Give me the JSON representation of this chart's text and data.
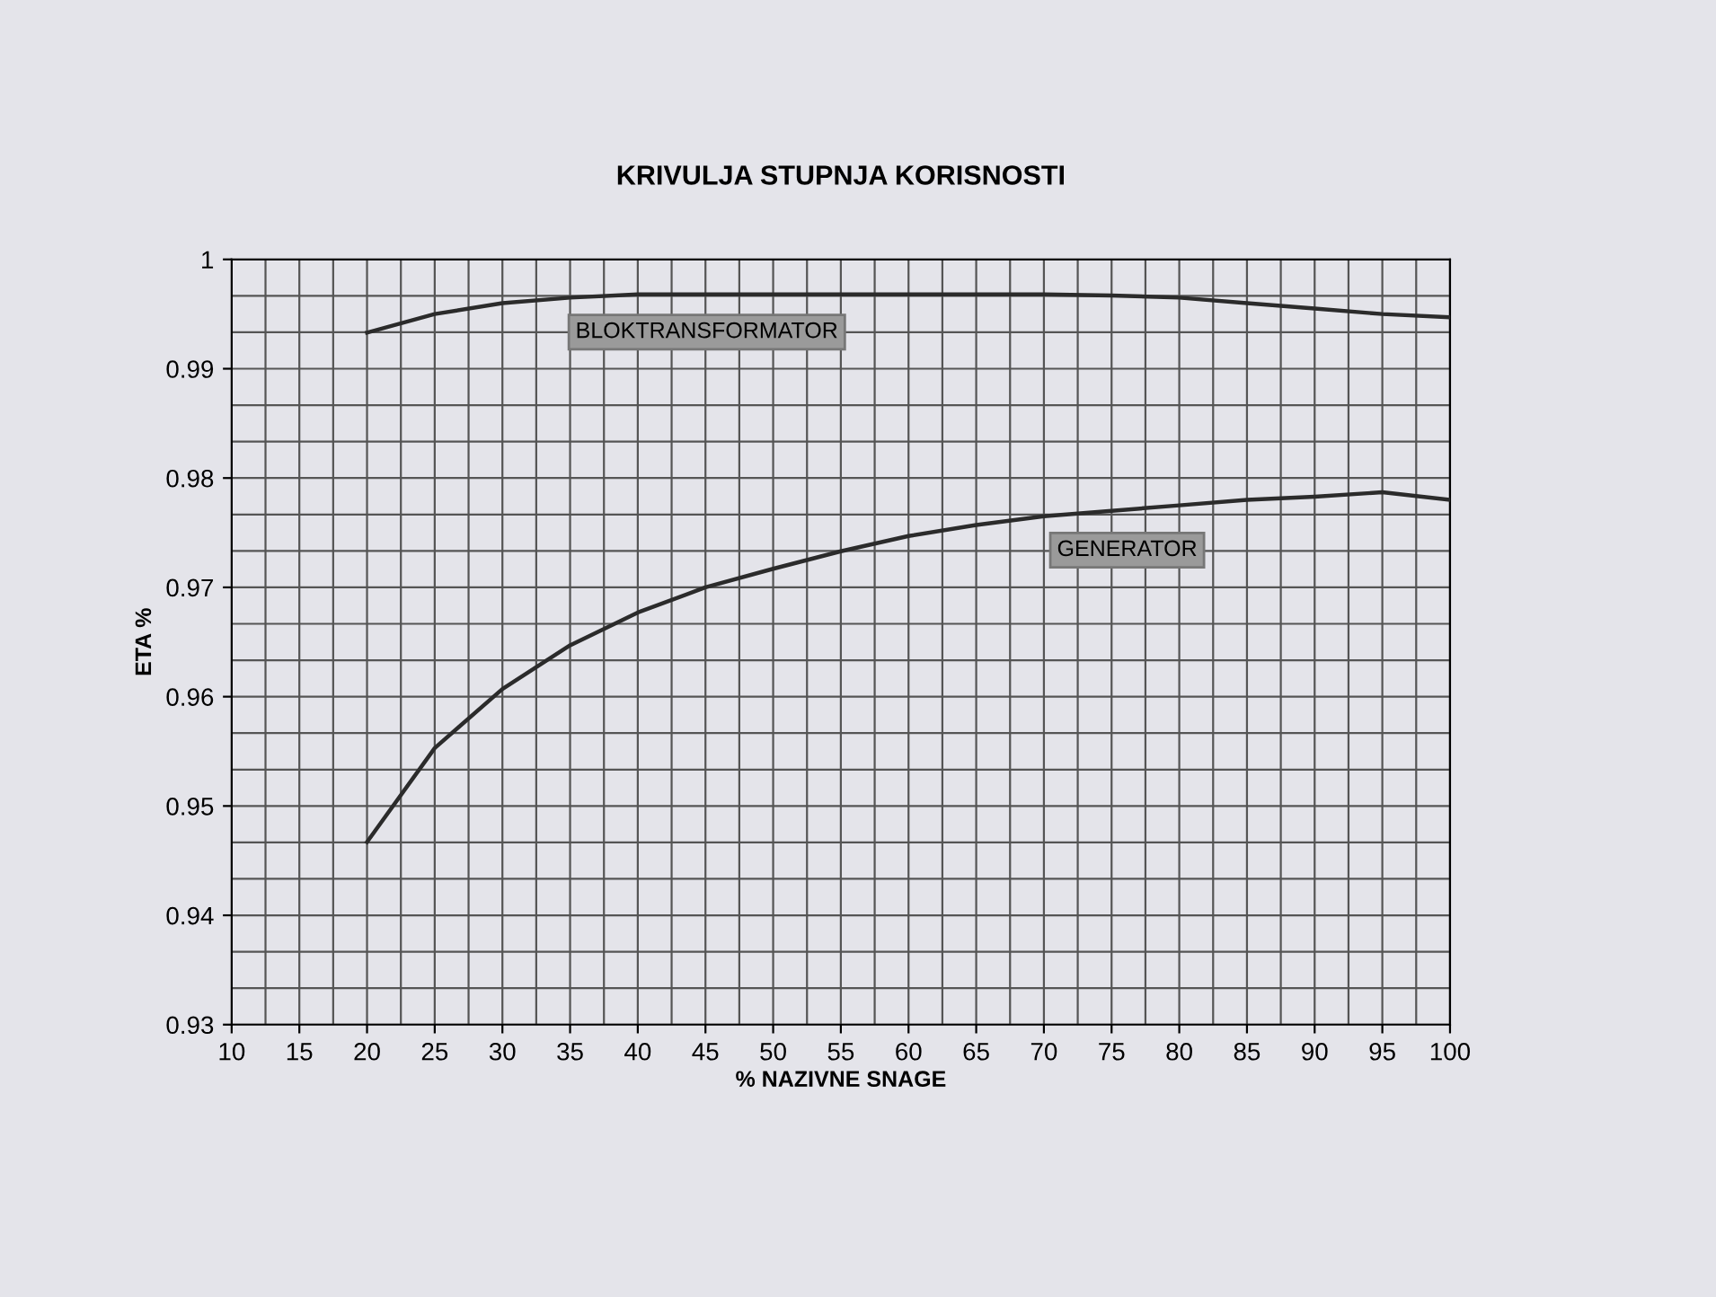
{
  "chart_data": {
    "type": "line",
    "title": "KRIVULJA STUPNJA KORISNOSTI",
    "xlabel": "% NAZIVNE SNAGE",
    "ylabel": "ETA %",
    "x": [
      20,
      25,
      30,
      35,
      40,
      45,
      50,
      55,
      60,
      65,
      70,
      75,
      80,
      85,
      90,
      95,
      100
    ],
    "series": [
      {
        "color": "#2b2b2b",
        "values": [
          0.9933,
          0.995,
          0.996,
          0.9965,
          0.9968,
          0.9968,
          0.9968,
          0.9968,
          0.9968,
          0.9968,
          0.9968,
          0.9967,
          0.9965,
          0.996,
          0.9955,
          0.995,
          0.9947
        ]
      },
      {
        "color": "#2b2b2b",
        "values": [
          0.9467,
          0.9553,
          0.9607,
          0.9647,
          0.9677,
          0.97,
          0.9717,
          0.9733,
          0.9747,
          0.9757,
          0.9765,
          0.977,
          0.9775,
          0.978,
          0.9783,
          0.9787,
          0.978
        ]
      }
    ],
    "annotations": [
      "BLOKTRANSFORMATOR",
      "GENERATOR"
    ],
    "xlim": [
      10,
      100
    ],
    "xticks": [
      10,
      15,
      20,
      25,
      30,
      35,
      40,
      45,
      50,
      55,
      60,
      65,
      70,
      75,
      80,
      85,
      90,
      95,
      100
    ],
    "ylim": [
      0.93,
      1
    ],
    "yticks": [
      0.93,
      0.94,
      0.95,
      0.96,
      0.97,
      0.98,
      0.99,
      1
    ],
    "grid": true,
    "legend": false,
    "marker": "none",
    "line_style": "solid"
  }
}
